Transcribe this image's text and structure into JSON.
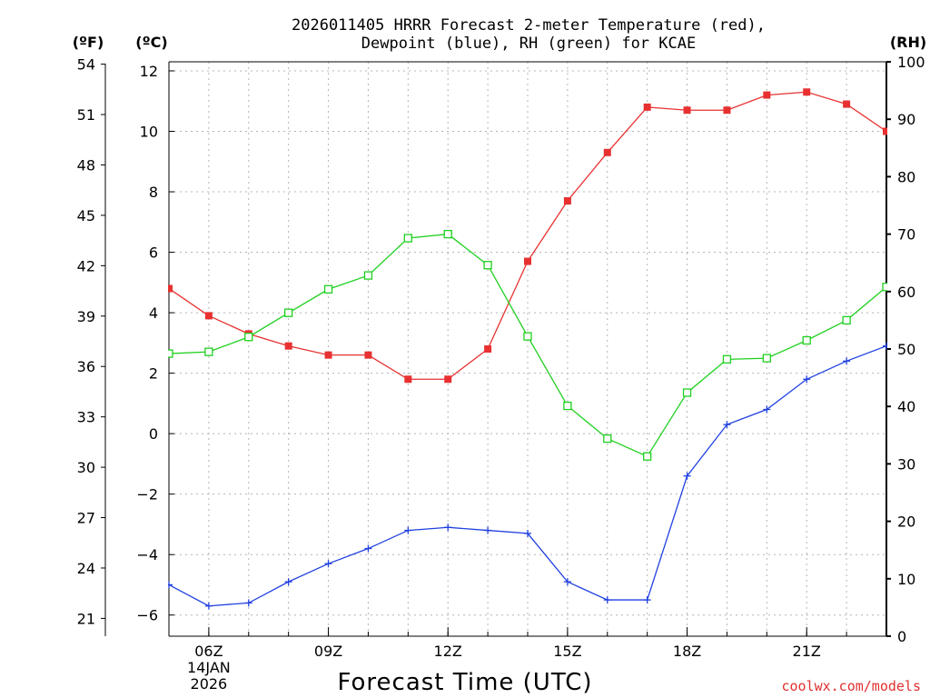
{
  "chart_data": {
    "type": "line",
    "title": [
      "2026011405 HRRR Forecast 2-meter Temperature (red),",
      "Dewpoint (blue), RH (green) for KCAE"
    ],
    "xlabel": "Forecast Time (UTC)",
    "credit": "coolwx.com/models",
    "units": {
      "fahrenheit": "(ºF)",
      "celsius": "(ºC)",
      "rh": "(RH)"
    },
    "x_hours": [
      5,
      6,
      7,
      8,
      9,
      10,
      11,
      12,
      13,
      14,
      15,
      16,
      17,
      18,
      19,
      20,
      21,
      22,
      23
    ],
    "xlim": [
      5,
      23
    ],
    "x_ticks": [
      {
        "hour": 6,
        "label": "06Z",
        "sub": [
          "14JAN",
          "2026"
        ]
      },
      {
        "hour": 9,
        "label": "09Z"
      },
      {
        "hour": 12,
        "label": "12Z"
      },
      {
        "hour": 15,
        "label": "15Z"
      },
      {
        "hour": 18,
        "label": "18Z"
      },
      {
        "hour": 21,
        "label": "21Z"
      }
    ],
    "ylim_c": [
      -6.7,
      12.3
    ],
    "y_ticks_c": [
      12,
      10,
      8,
      6,
      4,
      2,
      0,
      -2,
      -4,
      -6
    ],
    "y_ticks_f": [
      54,
      51,
      48,
      45,
      42,
      39,
      36,
      33,
      30,
      27,
      24,
      21
    ],
    "ylim_rh": [
      0,
      100
    ],
    "y_ticks_rh": [
      100,
      90,
      80,
      70,
      60,
      50,
      40,
      30,
      20,
      10,
      0
    ],
    "series": [
      {
        "name": "Temperature",
        "axis": "celsius",
        "color": "#e83030",
        "marker": "filled-square",
        "values": [
          4.8,
          3.9,
          3.3,
          2.9,
          2.6,
          2.6,
          1.8,
          1.8,
          2.8,
          5.7,
          7.7,
          9.3,
          10.8,
          10.7,
          10.7,
          11.2,
          11.3,
          10.9,
          10.0
        ]
      },
      {
        "name": "Dewpoint",
        "axis": "celsius",
        "color": "#2040e0",
        "marker": "plus",
        "values": [
          -5.0,
          -5.7,
          -5.6,
          -4.9,
          -4.3,
          -3.8,
          -3.2,
          -3.1,
          -3.2,
          -3.3,
          -4.9,
          -5.5,
          -5.5,
          -1.4,
          0.3,
          0.8,
          1.8,
          2.4,
          2.9
        ]
      },
      {
        "name": "Relative Humidity",
        "axis": "rh",
        "color": "#20d020",
        "marker": "open-square",
        "values": [
          49.2,
          49.5,
          52.1,
          56.3,
          60.4,
          62.8,
          69.3,
          70.0,
          64.6,
          52.2,
          40.1,
          34.4,
          31.3,
          42.4,
          48.2,
          48.4,
          51.5,
          55.0,
          60.8
        ]
      }
    ]
  }
}
